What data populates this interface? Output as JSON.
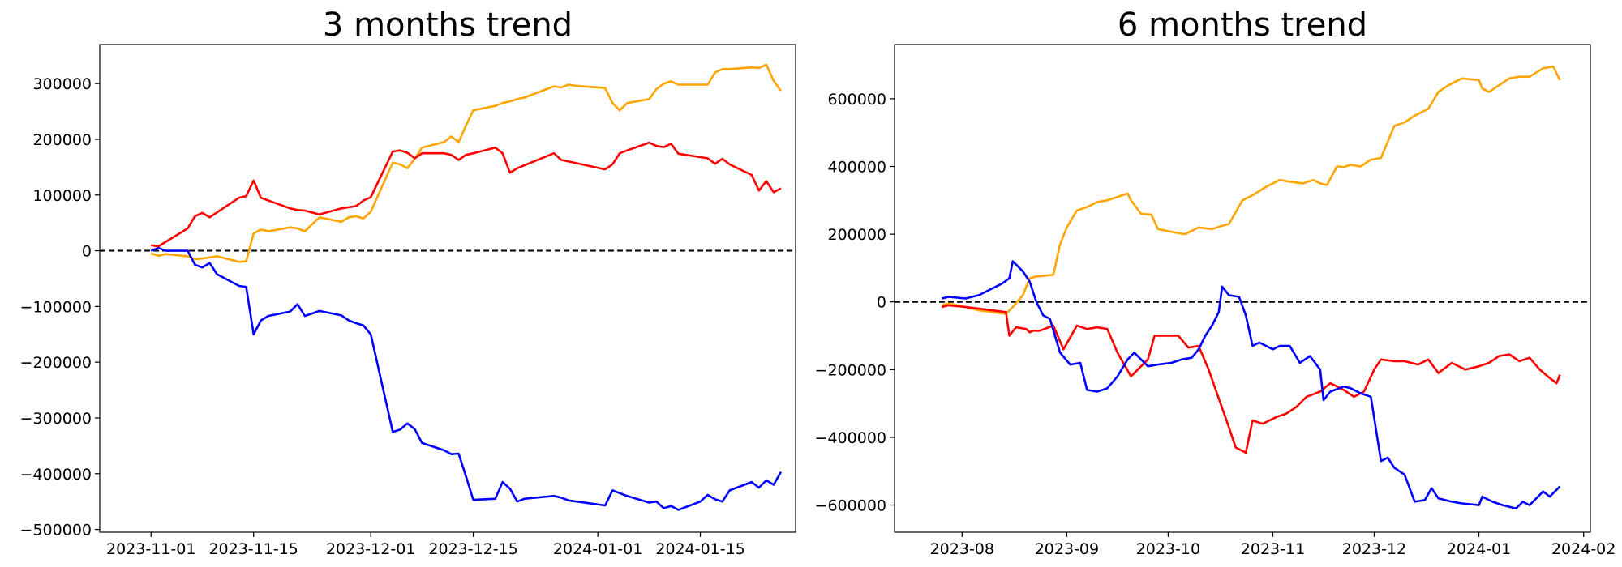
{
  "chart_data": [
    {
      "type": "line",
      "title": "3 months trend",
      "x_type": "date",
      "xlim": [
        "2023-10-25",
        "2024-01-28"
      ],
      "ylim": [
        -505000,
        370000
      ],
      "grid": false,
      "legend": "none",
      "x_ticks": [
        "2023-11-01",
        "2023-11-15",
        "2023-12-01",
        "2023-12-15",
        "2024-01-01",
        "2024-01-15"
      ],
      "y_ticks": [
        -500000,
        -400000,
        -300000,
        -200000,
        -100000,
        0,
        100000,
        200000,
        300000
      ],
      "reference_line": {
        "y": 0,
        "style": "dashed",
        "color": "#000000"
      },
      "series": [
        {
          "color": "#ffa500",
          "x": [
            "2023-11-01",
            "2023-11-02",
            "2023-11-03",
            "2023-11-06",
            "2023-11-07",
            "2023-11-08",
            "2023-11-09",
            "2023-11-10",
            "2023-11-13",
            "2023-11-14",
            "2023-11-15",
            "2023-11-16",
            "2023-11-17",
            "2023-11-20",
            "2023-11-21",
            "2023-11-22",
            "2023-11-24",
            "2023-11-27",
            "2023-11-28",
            "2023-11-29",
            "2023-11-30",
            "2023-12-01",
            "2023-12-04",
            "2023-12-05",
            "2023-12-06",
            "2023-12-07",
            "2023-12-08",
            "2023-12-11",
            "2023-12-12",
            "2023-12-13",
            "2023-12-14",
            "2023-12-15",
            "2023-12-18",
            "2023-12-19",
            "2023-12-20",
            "2023-12-21",
            "2023-12-22",
            "2023-12-26",
            "2023-12-27",
            "2023-12-28",
            "2023-12-29",
            "2024-01-02",
            "2024-01-03",
            "2024-01-04",
            "2024-01-05",
            "2024-01-08",
            "2024-01-09",
            "2024-01-10",
            "2024-01-11",
            "2024-01-12",
            "2024-01-16",
            "2024-01-17",
            "2024-01-18",
            "2024-01-19",
            "2024-01-22",
            "2024-01-23",
            "2024-01-24",
            "2024-01-25",
            "2024-01-26"
          ],
          "values": [
            -5000,
            -9000,
            -6000,
            -10000,
            -15000,
            -14000,
            -12000,
            -10000,
            -20000,
            -19000,
            31000,
            38000,
            35000,
            42000,
            40000,
            35000,
            60000,
            52000,
            60000,
            62000,
            58000,
            70000,
            158000,
            155000,
            148000,
            165000,
            185000,
            195000,
            205000,
            195000,
            225000,
            252000,
            260000,
            265000,
            268000,
            272000,
            275000,
            295000,
            293000,
            298000,
            296000,
            292000,
            265000,
            252000,
            265000,
            272000,
            290000,
            300000,
            304000,
            298000,
            298000,
            320000,
            326000,
            326000,
            329000,
            328000,
            334000,
            305000,
            287000
          ]
        },
        {
          "color": "#ff0000",
          "x": [
            "2023-11-01",
            "2023-11-02",
            "2023-11-06",
            "2023-11-07",
            "2023-11-08",
            "2023-11-09",
            "2023-11-13",
            "2023-11-14",
            "2023-11-15",
            "2023-11-16",
            "2023-11-20",
            "2023-11-21",
            "2023-11-22",
            "2023-11-24",
            "2023-11-27",
            "2023-11-28",
            "2023-11-29",
            "2023-11-30",
            "2023-12-01",
            "2023-12-04",
            "2023-12-05",
            "2023-12-06",
            "2023-12-07",
            "2023-12-08",
            "2023-12-11",
            "2023-12-12",
            "2023-12-13",
            "2023-12-14",
            "2023-12-15",
            "2023-12-18",
            "2023-12-19",
            "2023-12-20",
            "2023-12-21",
            "2023-12-26",
            "2023-12-27",
            "2024-01-02",
            "2024-01-03",
            "2024-01-04",
            "2024-01-05",
            "2024-01-08",
            "2024-01-09",
            "2024-01-10",
            "2024-01-11",
            "2024-01-12",
            "2024-01-15",
            "2024-01-16",
            "2024-01-17",
            "2024-01-18",
            "2024-01-19",
            "2024-01-22",
            "2024-01-23",
            "2024-01-24",
            "2024-01-25",
            "2024-01-26"
          ],
          "values": [
            10000,
            8000,
            40000,
            62000,
            68000,
            60000,
            95000,
            98000,
            126000,
            95000,
            76000,
            73000,
            72000,
            65000,
            76000,
            78000,
            80000,
            90000,
            96000,
            178000,
            180000,
            176000,
            166000,
            175000,
            175000,
            172000,
            163000,
            172000,
            175000,
            185000,
            175000,
            140000,
            148000,
            175000,
            163000,
            146000,
            155000,
            175000,
            180000,
            194000,
            188000,
            186000,
            192000,
            174000,
            168000,
            166000,
            156000,
            165000,
            155000,
            136000,
            108000,
            125000,
            105000,
            112000
          ]
        },
        {
          "color": "#0000ff",
          "x": [
            "2023-11-01",
            "2023-11-02",
            "2023-11-03",
            "2023-11-06",
            "2023-11-07",
            "2023-11-08",
            "2023-11-09",
            "2023-11-10",
            "2023-11-13",
            "2023-11-14",
            "2023-11-15",
            "2023-11-16",
            "2023-11-17",
            "2023-11-20",
            "2023-11-21",
            "2023-11-22",
            "2023-11-24",
            "2023-11-27",
            "2023-11-28",
            "2023-11-29",
            "2023-11-30",
            "2023-12-01",
            "2023-12-04",
            "2023-12-05",
            "2023-12-06",
            "2023-12-07",
            "2023-12-08",
            "2023-12-11",
            "2023-12-12",
            "2023-12-13",
            "2023-12-14",
            "2023-12-15",
            "2023-12-18",
            "2023-12-19",
            "2023-12-20",
            "2023-12-21",
            "2023-12-22",
            "2023-12-26",
            "2023-12-27",
            "2023-12-28",
            "2024-01-02",
            "2024-01-03",
            "2024-01-04",
            "2024-01-05",
            "2024-01-08",
            "2024-01-09",
            "2024-01-10",
            "2024-01-11",
            "2024-01-12",
            "2024-01-15",
            "2024-01-16",
            "2024-01-17",
            "2024-01-18",
            "2024-01-19",
            "2024-01-22",
            "2024-01-23",
            "2024-01-24",
            "2024-01-25",
            "2024-01-26"
          ],
          "values": [
            0,
            5000,
            0,
            0,
            -25000,
            -30000,
            -22000,
            -42000,
            -63000,
            -65000,
            -150000,
            -125000,
            -117000,
            -109000,
            -96000,
            -117000,
            -108000,
            -116000,
            -125000,
            -130000,
            -134000,
            -150000,
            -325000,
            -321000,
            -310000,
            -320000,
            -345000,
            -358000,
            -365000,
            -364000,
            -405000,
            -447000,
            -445000,
            -415000,
            -427000,
            -450000,
            -445000,
            -440000,
            -443000,
            -448000,
            -457000,
            -430000,
            -435000,
            -440000,
            -452000,
            -450000,
            -462000,
            -458000,
            -465000,
            -450000,
            -438000,
            -446000,
            -450000,
            -430000,
            -415000,
            -425000,
            -412000,
            -420000,
            -397000
          ]
        }
      ]
    },
    {
      "type": "line",
      "title": "6 months trend",
      "x_type": "date",
      "xlim": [
        "2023-07-12",
        "2024-02-03"
      ],
      "ylim": [
        -680000,
        760000
      ],
      "grid": false,
      "legend": "none",
      "x_ticks": [
        "2023-08",
        "2023-09",
        "2023-10",
        "2023-11",
        "2023-12",
        "2024-01",
        "2024-02"
      ],
      "y_ticks": [
        -600000,
        -400000,
        -200000,
        0,
        200000,
        400000,
        600000
      ],
      "reference_line": {
        "y": 0,
        "style": "dashed",
        "color": "#000000"
      },
      "series": [
        {
          "color": "#ffa500",
          "x": [
            "2023-07-26",
            "2023-07-28",
            "2023-08-02",
            "2023-08-06",
            "2023-08-10",
            "2023-08-14",
            "2023-08-16",
            "2023-08-19",
            "2023-08-21",
            "2023-08-23",
            "2023-08-28",
            "2023-08-30",
            "2023-09-01",
            "2023-09-04",
            "2023-09-07",
            "2023-09-10",
            "2023-09-13",
            "2023-09-16",
            "2023-09-19",
            "2023-09-20",
            "2023-09-23",
            "2023-09-26",
            "2023-09-28",
            "2023-10-03",
            "2023-10-06",
            "2023-10-10",
            "2023-10-14",
            "2023-10-17",
            "2023-10-19",
            "2023-10-23",
            "2023-10-26",
            "2023-10-30",
            "2023-11-03",
            "2023-11-06",
            "2023-11-10",
            "2023-11-13",
            "2023-11-15",
            "2023-11-17",
            "2023-11-20",
            "2023-11-22",
            "2023-11-24",
            "2023-11-27",
            "2023-11-30",
            "2023-12-03",
            "2023-12-07",
            "2023-12-10",
            "2023-12-13",
            "2023-12-17",
            "2023-12-20",
            "2023-12-23",
            "2023-12-27",
            "2024-01-01",
            "2024-01-02",
            "2024-01-04",
            "2024-01-07",
            "2024-01-10",
            "2024-01-13",
            "2024-01-16",
            "2024-01-20",
            "2024-01-23",
            "2024-01-25"
          ],
          "values": [
            -10000,
            -5000,
            -15000,
            -25000,
            -30000,
            -35000,
            -15000,
            20000,
            70000,
            75000,
            80000,
            170000,
            220000,
            270000,
            280000,
            295000,
            300000,
            310000,
            320000,
            300000,
            260000,
            258000,
            215000,
            205000,
            200000,
            220000,
            215000,
            225000,
            230000,
            300000,
            315000,
            340000,
            360000,
            355000,
            350000,
            360000,
            350000,
            345000,
            400000,
            398000,
            405000,
            400000,
            420000,
            425000,
            520000,
            530000,
            550000,
            570000,
            620000,
            640000,
            660000,
            655000,
            630000,
            620000,
            640000,
            660000,
            665000,
            665000,
            690000,
            695000,
            655000
          ]
        },
        {
          "color": "#ff0000",
          "x": [
            "2023-07-26",
            "2023-07-28",
            "2023-08-02",
            "2023-08-06",
            "2023-08-10",
            "2023-08-14",
            "2023-08-15",
            "2023-08-17",
            "2023-08-20",
            "2023-08-21",
            "2023-08-22",
            "2023-08-24",
            "2023-08-28",
            "2023-08-31",
            "2023-09-04",
            "2023-09-07",
            "2023-09-10",
            "2023-09-13",
            "2023-09-16",
            "2023-09-20",
            "2023-09-22",
            "2023-09-25",
            "2023-09-27",
            "2023-09-30",
            "2023-10-04",
            "2023-10-07",
            "2023-10-10",
            "2023-10-13",
            "2023-10-16",
            "2023-10-19",
            "2023-10-21",
            "2023-10-24",
            "2023-10-26",
            "2023-10-29",
            "2023-11-02",
            "2023-11-05",
            "2023-11-08",
            "2023-11-11",
            "2023-11-15",
            "2023-11-18",
            "2023-11-22",
            "2023-11-25",
            "2023-11-28",
            "2023-12-01",
            "2023-12-03",
            "2023-12-07",
            "2023-12-10",
            "2023-12-14",
            "2023-12-17",
            "2023-12-20",
            "2023-12-24",
            "2023-12-28",
            "2024-01-01",
            "2024-01-04",
            "2024-01-07",
            "2024-01-10",
            "2024-01-13",
            "2024-01-16",
            "2024-01-19",
            "2024-01-22",
            "2024-01-24",
            "2024-01-25"
          ],
          "values": [
            -15000,
            -10000,
            -15000,
            -20000,
            -25000,
            -30000,
            -100000,
            -75000,
            -80000,
            -90000,
            -85000,
            -85000,
            -70000,
            -140000,
            -70000,
            -80000,
            -75000,
            -80000,
            -150000,
            -220000,
            -200000,
            -170000,
            -100000,
            -100000,
            -100000,
            -135000,
            -130000,
            -200000,
            -285000,
            -370000,
            -430000,
            -445000,
            -350000,
            -360000,
            -340000,
            -330000,
            -310000,
            -280000,
            -265000,
            -240000,
            -260000,
            -280000,
            -265000,
            -200000,
            -170000,
            -175000,
            -175000,
            -185000,
            -170000,
            -210000,
            -180000,
            -200000,
            -190000,
            -180000,
            -160000,
            -155000,
            -175000,
            -165000,
            -200000,
            -225000,
            -240000,
            -215000
          ]
        },
        {
          "color": "#0000ff",
          "x": [
            "2023-07-26",
            "2023-07-28",
            "2023-08-02",
            "2023-08-06",
            "2023-08-10",
            "2023-08-13",
            "2023-08-15",
            "2023-08-16",
            "2023-08-19",
            "2023-08-21",
            "2023-08-23",
            "2023-08-25",
            "2023-08-27",
            "2023-08-30",
            "2023-09-02",
            "2023-09-05",
            "2023-09-07",
            "2023-09-10",
            "2023-09-13",
            "2023-09-16",
            "2023-09-19",
            "2023-09-21",
            "2023-09-23",
            "2023-09-25",
            "2023-09-28",
            "2023-10-02",
            "2023-10-05",
            "2023-10-08",
            "2023-10-10",
            "2023-10-12",
            "2023-10-14",
            "2023-10-16",
            "2023-10-17",
            "2023-10-19",
            "2023-10-22",
            "2023-10-24",
            "2023-10-26",
            "2023-10-28",
            "2023-11-01",
            "2023-11-03",
            "2023-11-06",
            "2023-11-09",
            "2023-11-12",
            "2023-11-15",
            "2023-11-16",
            "2023-11-18",
            "2023-11-22",
            "2023-11-24",
            "2023-11-27",
            "2023-11-30",
            "2023-12-03",
            "2023-12-05",
            "2023-12-07",
            "2023-12-10",
            "2023-12-13",
            "2023-12-16",
            "2023-12-18",
            "2023-12-20",
            "2023-12-24",
            "2023-12-27",
            "2024-01-01",
            "2024-01-02",
            "2024-01-05",
            "2024-01-08",
            "2024-01-12",
            "2024-01-14",
            "2024-01-16",
            "2024-01-18",
            "2024-01-20",
            "2024-01-22",
            "2024-01-24",
            "2024-01-25"
          ],
          "values": [
            10000,
            15000,
            10000,
            20000,
            40000,
            55000,
            70000,
            120000,
            90000,
            60000,
            0,
            -40000,
            -50000,
            -150000,
            -185000,
            -180000,
            -260000,
            -265000,
            -255000,
            -220000,
            -170000,
            -150000,
            -170000,
            -190000,
            -185000,
            -180000,
            -170000,
            -165000,
            -140000,
            -100000,
            -70000,
            -30000,
            45000,
            20000,
            15000,
            -40000,
            -130000,
            -120000,
            -140000,
            -130000,
            -130000,
            -180000,
            -160000,
            -200000,
            -290000,
            -265000,
            -250000,
            -255000,
            -270000,
            -280000,
            -470000,
            -460000,
            -490000,
            -510000,
            -590000,
            -585000,
            -550000,
            -580000,
            -590000,
            -595000,
            -600000,
            -575000,
            -590000,
            -600000,
            -610000,
            -590000,
            -600000,
            -580000,
            -560000,
            -575000,
            -555000,
            -545000
          ]
        }
      ]
    }
  ]
}
